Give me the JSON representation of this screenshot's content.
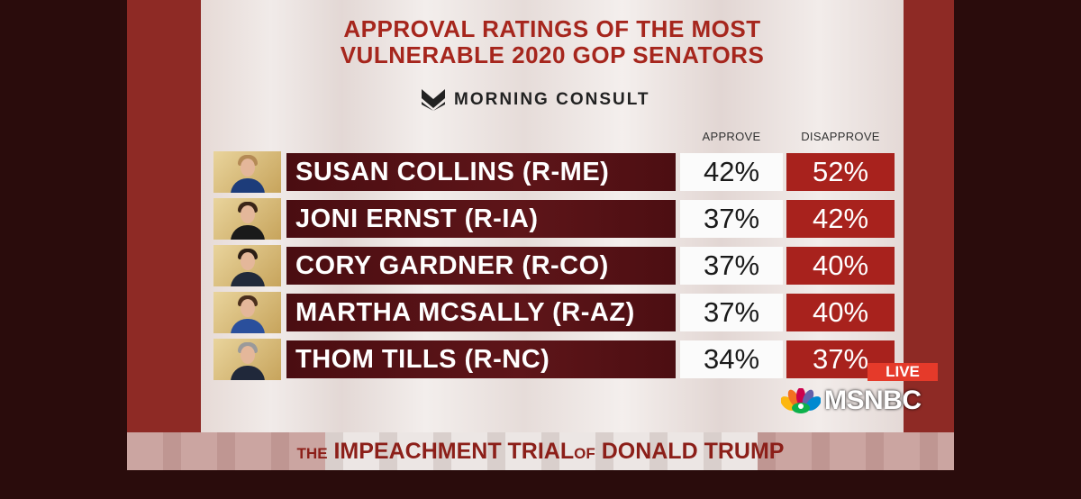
{
  "graphic": {
    "title_line1": "APPROVAL RATINGS OF THE MOST",
    "title_line2": "VULNERABLE 2020 GOP SENATORS",
    "source": "MORNING CONSULT",
    "col_approve": "APPROVE",
    "col_disapprove": "DISAPPROVE",
    "rows": [
      {
        "name": "SUSAN COLLINS (R-ME)",
        "approve": "42%",
        "disapprove": "52%"
      },
      {
        "name": "JONI ERNST (R-IA)",
        "approve": "37%",
        "disapprove": "42%"
      },
      {
        "name": "CORY GARDNER (R-CO)",
        "approve": "37%",
        "disapprove": "40%"
      },
      {
        "name": "MARTHA MCSALLY (R-AZ)",
        "approve": "37%",
        "disapprove": "40%"
      },
      {
        "name": "THOM TILLS (R-NC)",
        "approve": "34%",
        "disapprove": "37%"
      }
    ]
  },
  "network": {
    "live": "LIVE",
    "logo_text": "MSNBC"
  },
  "banner": {
    "part1": "THE",
    "part2": "IMPEACHMENT TRIAL",
    "part3": "OF",
    "part4": "DONALD TRUMP"
  },
  "colors": {
    "title_red": "#a6261d",
    "name_bar": "#5e1519",
    "disapprove_bg": "#a8221d",
    "approve_bg": "#fbfbfb",
    "live_bg": "#e53a2a"
  },
  "icons": [
    "morning-consult-logo-icon",
    "nbc-peacock-icon"
  ]
}
